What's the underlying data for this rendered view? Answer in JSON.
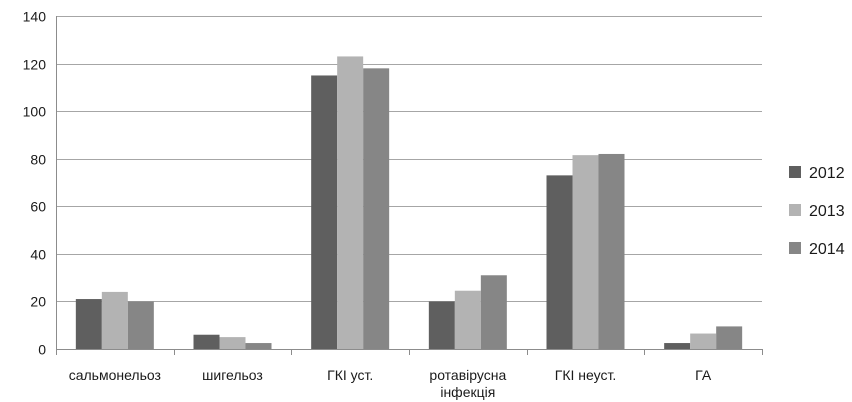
{
  "chart_data": {
    "type": "bar",
    "title": "",
    "xlabel": "",
    "ylabel": "",
    "ylim": [
      0,
      140
    ],
    "yticks": [
      0,
      20,
      40,
      60,
      80,
      100,
      120,
      140
    ],
    "grid": true,
    "legend_position": "right",
    "categories": [
      [
        "сальмонельоз"
      ],
      [
        "шигельоз"
      ],
      [
        "ГКІ уст."
      ],
      [
        "ротавірусна",
        "інфекція"
      ],
      [
        "ГКІ неуст."
      ],
      [
        "ГА"
      ]
    ],
    "series": [
      {
        "name": "2012",
        "color": "#5f5f5f",
        "values": [
          21,
          6,
          115,
          20,
          73,
          2.5
        ]
      },
      {
        "name": "2013",
        "color": "#b3b3b3",
        "values": [
          24,
          5,
          123,
          24.5,
          81.5,
          6.5
        ]
      },
      {
        "name": "2014",
        "color": "#868686",
        "values": [
          20,
          2.5,
          118,
          31,
          82,
          9.5
        ]
      }
    ]
  }
}
